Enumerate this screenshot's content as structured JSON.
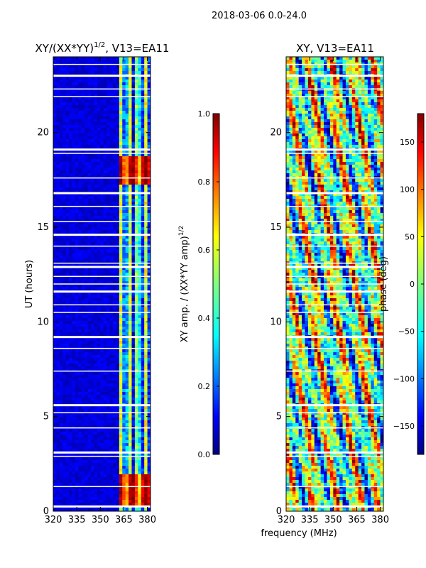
{
  "figure_title": "2018-03-06 0.0-24.0",
  "xlabel": "frequency (MHz)",
  "colors": {
    "background": "#ffffff",
    "field_dark": "#00007f",
    "gap": "#ffffff"
  },
  "chart_data": [
    {
      "type": "heatmap",
      "title": "XY/(XX*YY)",
      "title_exponent": "1/2",
      "title_suffix": ", V13=EA11",
      "xlabel": "frequency (MHz)",
      "ylabel": "UT (hours)",
      "xlim": [
        320,
        382
      ],
      "ylim": [
        0,
        24
      ],
      "xticks": [
        320,
        335,
        350,
        365,
        380
      ],
      "yticks": [
        0,
        5,
        10,
        15,
        20
      ],
      "xtick_labels": [
        "320",
        "335",
        "350",
        "365",
        "380"
      ],
      "ytick_labels": [
        "0",
        "5",
        "10",
        "15",
        "20"
      ],
      "flagged_freq_mhz": [
        362,
        367
      ],
      "bright_band_hours": [
        [
          0.3,
          2.0
        ],
        [
          17.3,
          18.8
        ]
      ],
      "colorbar": {
        "label": "XY amp. / (XX*YY amp)",
        "label_exponent": "1/2",
        "range": [
          0.0,
          1.0
        ],
        "ticks": [
          0.0,
          0.2,
          0.4,
          0.6,
          0.8,
          1.0
        ],
        "tick_labels": [
          "0.0",
          "0.2",
          "0.4",
          "0.6",
          "0.8",
          "1.0"
        ],
        "colormap": "jet"
      }
    },
    {
      "type": "heatmap",
      "title": "XY, V13=EA11",
      "xlabel": "frequency (MHz)",
      "ylabel": "",
      "xlim": [
        320,
        382
      ],
      "ylim": [
        0,
        24
      ],
      "xticks": [
        320,
        335,
        350,
        365,
        380
      ],
      "yticks": [
        0,
        5,
        10,
        15,
        20
      ],
      "xtick_labels": [
        "320",
        "335",
        "350",
        "365",
        "380"
      ],
      "ytick_labels": [
        "0",
        "5",
        "10",
        "15",
        "20"
      ],
      "colorbar": {
        "label": "phase (deg)",
        "range": [
          -180,
          180
        ],
        "ticks": [
          -150,
          -100,
          -50,
          0,
          50,
          100,
          150
        ],
        "tick_labels": [
          "−150",
          "−100",
          "−50",
          "0",
          "50",
          "100",
          "150"
        ],
        "colormap": "jet"
      }
    }
  ]
}
